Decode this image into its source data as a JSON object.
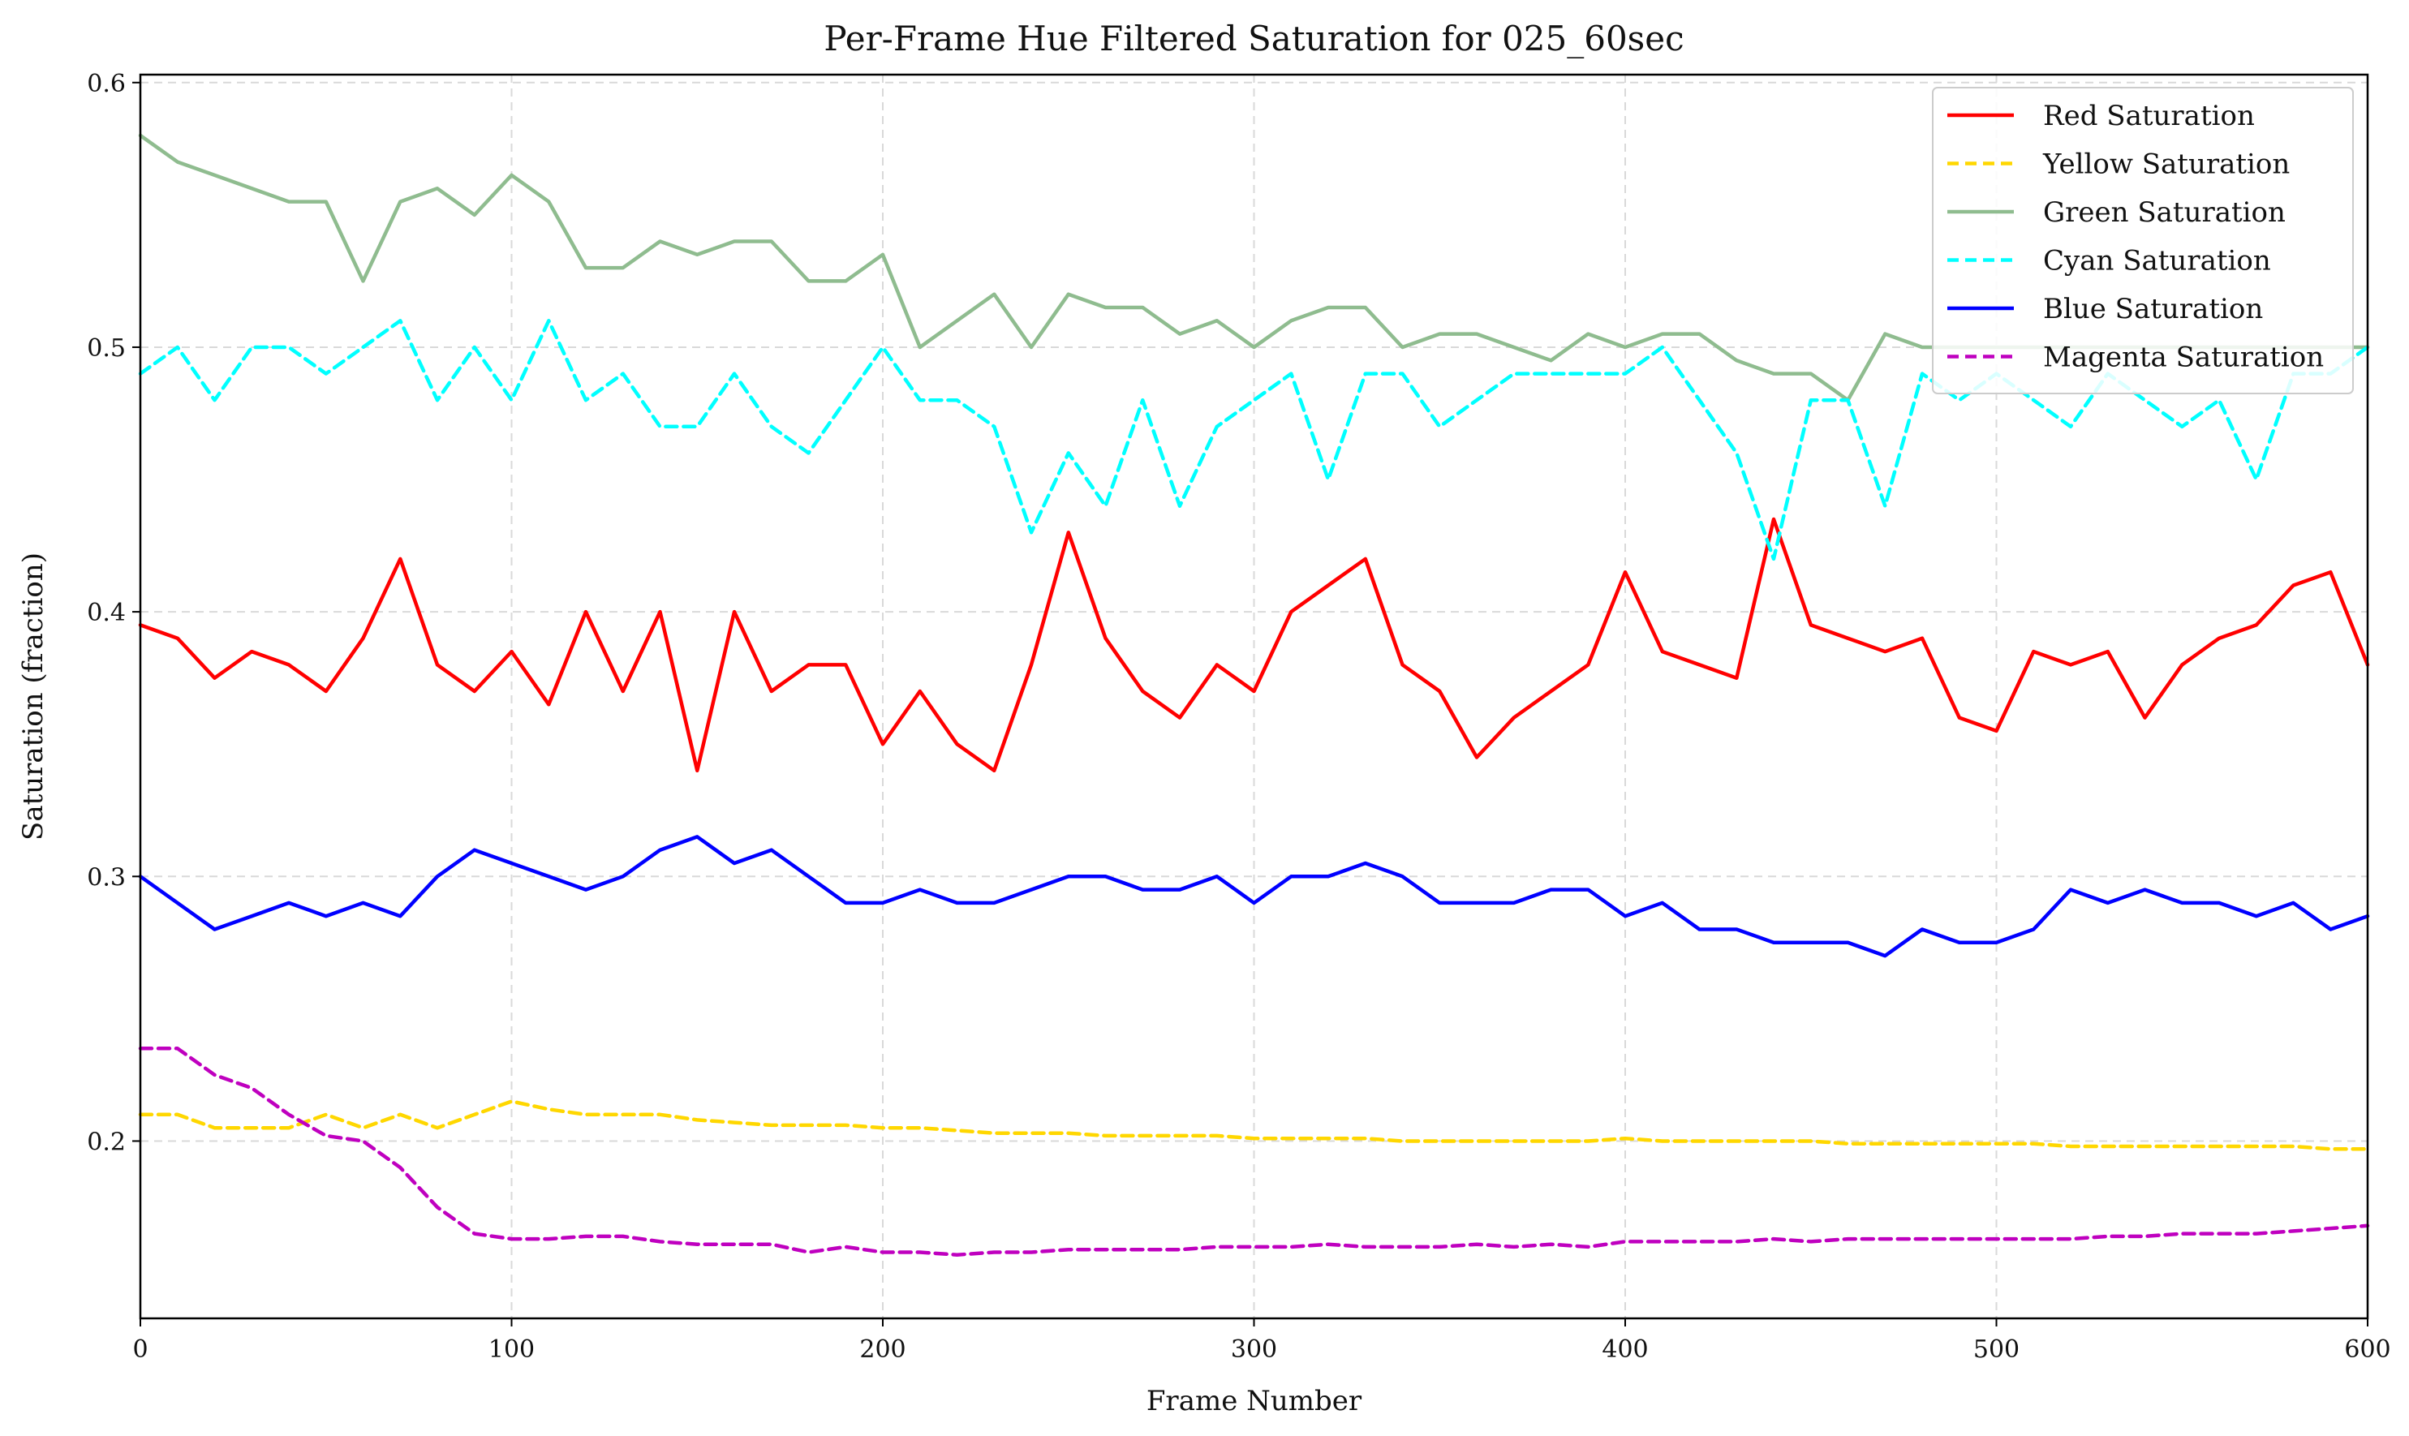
{
  "chart_data": {
    "type": "line",
    "title": "Per-Frame Hue Filtered Saturation for 025_60sec",
    "xlabel": "Frame Number",
    "ylabel": "Saturation (fraction)",
    "xlim": [
      0,
      600
    ],
    "ylim": [
      0.133,
      0.603
    ],
    "x_ticks": [
      0,
      100,
      200,
      300,
      400,
      500,
      600
    ],
    "x_tick_labels": [
      "0",
      "100",
      "200",
      "300",
      "400",
      "500",
      "600"
    ],
    "y_ticks": [
      0.2,
      0.3,
      0.4,
      0.5,
      0.6
    ],
    "y_tick_labels": [
      "0.2",
      "0.3",
      "0.4",
      "0.5",
      "0.6"
    ],
    "grid": true,
    "legend_position": "top-right",
    "x": [
      0,
      10,
      20,
      30,
      40,
      50,
      60,
      70,
      80,
      90,
      100,
      110,
      120,
      130,
      140,
      150,
      160,
      170,
      180,
      190,
      200,
      210,
      220,
      230,
      240,
      250,
      260,
      270,
      280,
      290,
      300,
      310,
      320,
      330,
      340,
      350,
      360,
      370,
      380,
      390,
      400,
      410,
      420,
      430,
      440,
      450,
      460,
      470,
      480,
      490,
      500,
      510,
      520,
      530,
      540,
      550,
      560,
      570,
      580,
      590,
      600
    ],
    "series": [
      {
        "name": "Red Saturation",
        "color": "#ff0000",
        "dash": "solid",
        "values": [
          0.395,
          0.39,
          0.375,
          0.385,
          0.38,
          0.37,
          0.39,
          0.42,
          0.38,
          0.37,
          0.385,
          0.365,
          0.4,
          0.37,
          0.4,
          0.34,
          0.4,
          0.37,
          0.38,
          0.38,
          0.35,
          0.37,
          0.35,
          0.34,
          0.38,
          0.43,
          0.39,
          0.37,
          0.36,
          0.38,
          0.37,
          0.4,
          0.41,
          0.42,
          0.38,
          0.37,
          0.345,
          0.36,
          0.37,
          0.38,
          0.415,
          0.385,
          0.38,
          0.375,
          0.435,
          0.395,
          0.39,
          0.385,
          0.39,
          0.36,
          0.355,
          0.385,
          0.38,
          0.385,
          0.36,
          0.38,
          0.39,
          0.395,
          0.41,
          0.415,
          0.38
        ]
      },
      {
        "name": "Yellow Saturation",
        "color": "#ffd700",
        "dash": "dashed",
        "values": [
          0.21,
          0.21,
          0.205,
          0.205,
          0.205,
          0.21,
          0.205,
          0.21,
          0.205,
          0.21,
          0.215,
          0.212,
          0.21,
          0.21,
          0.21,
          0.208,
          0.207,
          0.206,
          0.206,
          0.206,
          0.205,
          0.205,
          0.204,
          0.203,
          0.203,
          0.203,
          0.202,
          0.202,
          0.202,
          0.202,
          0.201,
          0.201,
          0.201,
          0.201,
          0.2,
          0.2,
          0.2,
          0.2,
          0.2,
          0.2,
          0.201,
          0.2,
          0.2,
          0.2,
          0.2,
          0.2,
          0.199,
          0.199,
          0.199,
          0.199,
          0.199,
          0.199,
          0.198,
          0.198,
          0.198,
          0.198,
          0.198,
          0.198,
          0.198,
          0.197,
          0.197
        ]
      },
      {
        "name": "Green Saturation",
        "color": "#8fbc8f",
        "dash": "solid",
        "values": [
          0.58,
          0.57,
          0.565,
          0.56,
          0.555,
          0.555,
          0.525,
          0.555,
          0.56,
          0.55,
          0.565,
          0.555,
          0.53,
          0.53,
          0.54,
          0.535,
          0.54,
          0.54,
          0.525,
          0.525,
          0.535,
          0.5,
          0.51,
          0.52,
          0.5,
          0.52,
          0.515,
          0.515,
          0.505,
          0.51,
          0.5,
          0.51,
          0.515,
          0.515,
          0.5,
          0.505,
          0.505,
          0.5,
          0.495,
          0.505,
          0.5,
          0.505,
          0.505,
          0.495,
          0.49,
          0.49,
          0.48,
          0.505,
          0.5,
          0.5,
          0.5,
          0.5,
          0.5,
          0.5,
          0.5,
          0.5,
          0.5,
          0.5,
          0.5,
          0.5,
          0.5
        ]
      },
      {
        "name": "Cyan Saturation",
        "color": "#00ffff",
        "dash": "dashed",
        "values": [
          0.49,
          0.5,
          0.48,
          0.5,
          0.5,
          0.49,
          0.5,
          0.51,
          0.48,
          0.5,
          0.48,
          0.51,
          0.48,
          0.49,
          0.47,
          0.47,
          0.49,
          0.47,
          0.46,
          0.48,
          0.5,
          0.48,
          0.48,
          0.47,
          0.43,
          0.46,
          0.44,
          0.48,
          0.44,
          0.47,
          0.48,
          0.49,
          0.45,
          0.49,
          0.49,
          0.47,
          0.48,
          0.49,
          0.49,
          0.49,
          0.49,
          0.5,
          0.48,
          0.46,
          0.42,
          0.48,
          0.48,
          0.44,
          0.49,
          0.48,
          0.49,
          0.48,
          0.47,
          0.49,
          0.48,
          0.47,
          0.48,
          0.45,
          0.49,
          0.49,
          0.5
        ]
      },
      {
        "name": "Blue Saturation",
        "color": "#0000ff",
        "dash": "solid",
        "values": [
          0.3,
          0.29,
          0.28,
          0.285,
          0.29,
          0.285,
          0.29,
          0.285,
          0.3,
          0.31,
          0.305,
          0.3,
          0.295,
          0.3,
          0.31,
          0.315,
          0.305,
          0.31,
          0.3,
          0.29,
          0.29,
          0.295,
          0.29,
          0.29,
          0.295,
          0.3,
          0.3,
          0.295,
          0.295,
          0.3,
          0.29,
          0.3,
          0.3,
          0.305,
          0.3,
          0.29,
          0.29,
          0.29,
          0.295,
          0.295,
          0.285,
          0.29,
          0.28,
          0.28,
          0.275,
          0.275,
          0.275,
          0.27,
          0.28,
          0.275,
          0.275,
          0.28,
          0.295,
          0.29,
          0.295,
          0.29,
          0.29,
          0.285,
          0.29,
          0.28,
          0.285
        ]
      },
      {
        "name": "Magenta Saturation",
        "color": "#bf00bf",
        "dash": "dashed",
        "values": [
          0.235,
          0.235,
          0.225,
          0.22,
          0.21,
          0.202,
          0.2,
          0.19,
          0.175,
          0.165,
          0.163,
          0.163,
          0.164,
          0.164,
          0.162,
          0.161,
          0.161,
          0.161,
          0.158,
          0.16,
          0.158,
          0.158,
          0.157,
          0.158,
          0.158,
          0.159,
          0.159,
          0.159,
          0.159,
          0.16,
          0.16,
          0.16,
          0.161,
          0.16,
          0.16,
          0.16,
          0.161,
          0.16,
          0.161,
          0.16,
          0.162,
          0.162,
          0.162,
          0.162,
          0.163,
          0.162,
          0.163,
          0.163,
          0.163,
          0.163,
          0.163,
          0.163,
          0.163,
          0.164,
          0.164,
          0.165,
          0.165,
          0.165,
          0.166,
          0.167,
          0.168
        ]
      }
    ]
  }
}
